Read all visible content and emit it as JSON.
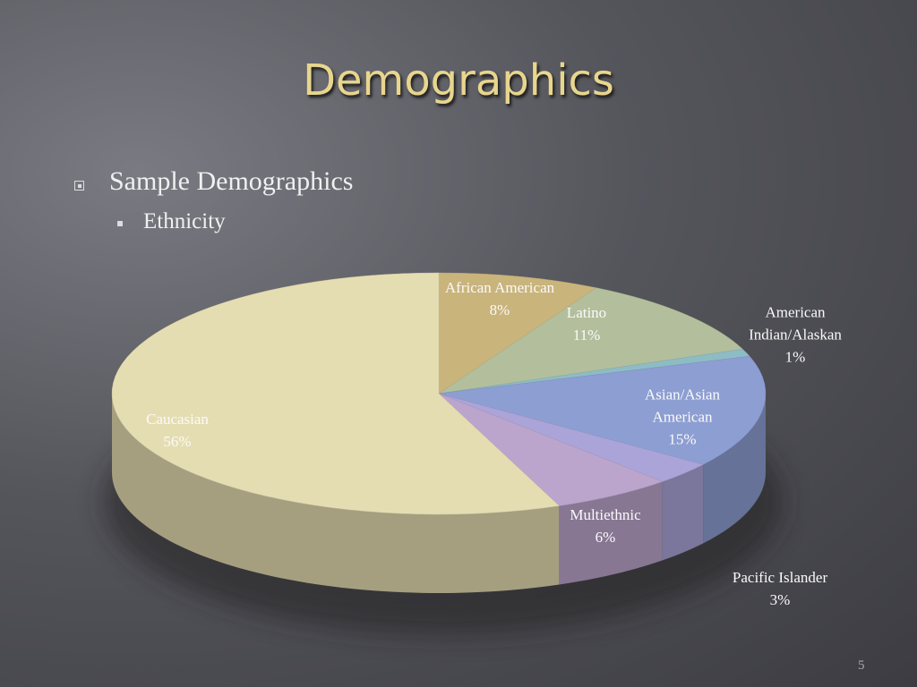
{
  "chart_data": {
    "type": "pie",
    "title": "Demographics",
    "categories": [
      "African American",
      "Latino",
      "American Indian/Alaskan",
      "Asian/Asian American",
      "Pacific Islander",
      "Multiethnic",
      "Caucasian"
    ],
    "values": [
      8,
      11,
      1,
      15,
      3,
      6,
      56
    ],
    "value_labels": [
      "8%",
      "11%",
      "1%",
      "15%",
      "3%",
      "6%",
      "56%"
    ],
    "colors": [
      "#c9b47c",
      "#b3bf9c",
      "#8ebcc4",
      "#8d9ed2",
      "#aaa4d8",
      "#bba5cc",
      "#e5ddb2"
    ]
  },
  "slide": {
    "bullets": [
      "Sample Demographics"
    ],
    "sub_bullets": [
      "Ethnicity"
    ],
    "page_number": "5"
  }
}
